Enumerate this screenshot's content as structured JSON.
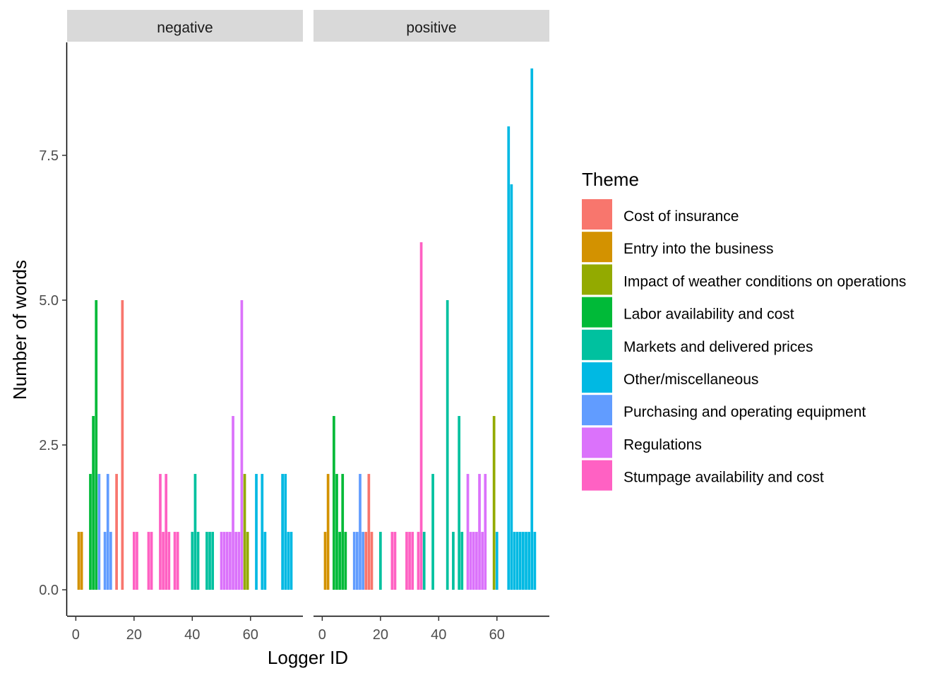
{
  "chart_data": {
    "type": "bar",
    "xlabel": "Logger ID",
    "ylabel": "Number of words",
    "xlim": [
      -3,
      78
    ],
    "ylim": [
      -0.45,
      9.45
    ],
    "x_ticks": [
      0,
      20,
      40,
      60
    ],
    "y_ticks": [
      0,
      2.5,
      5,
      7.5
    ],
    "y_tick_labels": [
      "0.0",
      "2.5",
      "5.0",
      "7.5"
    ],
    "grid": false,
    "legend": {
      "title": "Theme",
      "position": "right",
      "entries": [
        {
          "name": "Cost of insurance",
          "color": "#F8766D"
        },
        {
          "name": "Entry into the business",
          "color": "#D39200"
        },
        {
          "name": "Impact of weather conditions on operations",
          "color": "#93AA00"
        },
        {
          "name": "Labor availability and cost",
          "color": "#00BA38"
        },
        {
          "name": "Markets and delivered prices",
          "color": "#00C19F"
        },
        {
          "name": "Other/miscellaneous",
          "color": "#00B9E3"
        },
        {
          "name": "Purchasing and operating equipment",
          "color": "#619CFF"
        },
        {
          "name": "Regulations",
          "color": "#DB72FB"
        },
        {
          "name": "Stumpage availability and cost",
          "color": "#FF61C3"
        }
      ]
    },
    "panels": [
      {
        "label": "negative",
        "bars": [
          {
            "x": 1,
            "y": 1,
            "theme": 1
          },
          {
            "x": 2,
            "y": 1,
            "theme": 1
          },
          {
            "x": 5,
            "y": 2,
            "theme": 3
          },
          {
            "x": 6,
            "y": 3,
            "theme": 3
          },
          {
            "x": 7,
            "y": 5,
            "theme": 3
          },
          {
            "x": 8,
            "y": 2,
            "theme": 6
          },
          {
            "x": 10,
            "y": 1,
            "theme": 6
          },
          {
            "x": 11,
            "y": 2,
            "theme": 6
          },
          {
            "x": 12,
            "y": 1,
            "theme": 6
          },
          {
            "x": 14,
            "y": 2,
            "theme": 0
          },
          {
            "x": 16,
            "y": 5,
            "theme": 0
          },
          {
            "x": 20,
            "y": 1,
            "theme": 8
          },
          {
            "x": 21,
            "y": 1,
            "theme": 8
          },
          {
            "x": 25,
            "y": 1,
            "theme": 8
          },
          {
            "x": 26,
            "y": 1,
            "theme": 8
          },
          {
            "x": 29,
            "y": 2,
            "theme": 8
          },
          {
            "x": 30,
            "y": 1,
            "theme": 8
          },
          {
            "x": 31,
            "y": 2,
            "theme": 8
          },
          {
            "x": 32,
            "y": 1,
            "theme": 8
          },
          {
            "x": 34,
            "y": 1,
            "theme": 8
          },
          {
            "x": 35,
            "y": 1,
            "theme": 8
          },
          {
            "x": 40,
            "y": 1,
            "theme": 4
          },
          {
            "x": 41,
            "y": 2,
            "theme": 4
          },
          {
            "x": 42,
            "y": 1,
            "theme": 4
          },
          {
            "x": 45,
            "y": 1,
            "theme": 4
          },
          {
            "x": 46,
            "y": 1,
            "theme": 4
          },
          {
            "x": 47,
            "y": 1,
            "theme": 4
          },
          {
            "x": 50,
            "y": 1,
            "theme": 7
          },
          {
            "x": 51,
            "y": 1,
            "theme": 7
          },
          {
            "x": 52,
            "y": 1,
            "theme": 7
          },
          {
            "x": 53,
            "y": 1,
            "theme": 7
          },
          {
            "x": 54,
            "y": 3,
            "theme": 7
          },
          {
            "x": 55,
            "y": 1,
            "theme": 7
          },
          {
            "x": 56,
            "y": 1,
            "theme": 7
          },
          {
            "x": 57,
            "y": 5,
            "theme": 7
          },
          {
            "x": 58,
            "y": 2,
            "theme": 2
          },
          {
            "x": 59,
            "y": 1,
            "theme": 2
          },
          {
            "x": 62,
            "y": 2,
            "theme": 5
          },
          {
            "x": 64,
            "y": 2,
            "theme": 5
          },
          {
            "x": 65,
            "y": 1,
            "theme": 5
          },
          {
            "x": 71,
            "y": 2,
            "theme": 5
          },
          {
            "x": 72,
            "y": 2,
            "theme": 5
          },
          {
            "x": 73,
            "y": 1,
            "theme": 5
          },
          {
            "x": 74,
            "y": 1,
            "theme": 5
          }
        ]
      },
      {
        "label": "positive",
        "bars": [
          {
            "x": 1,
            "y": 1,
            "theme": 1
          },
          {
            "x": 2,
            "y": 2,
            "theme": 1
          },
          {
            "x": 4,
            "y": 3,
            "theme": 3
          },
          {
            "x": 5,
            "y": 2,
            "theme": 3
          },
          {
            "x": 6,
            "y": 1,
            "theme": 3
          },
          {
            "x": 7,
            "y": 2,
            "theme": 3
          },
          {
            "x": 8,
            "y": 1,
            "theme": 3
          },
          {
            "x": 11,
            "y": 1,
            "theme": 6
          },
          {
            "x": 12,
            "y": 1,
            "theme": 6
          },
          {
            "x": 13,
            "y": 2,
            "theme": 6
          },
          {
            "x": 14,
            "y": 1,
            "theme": 6
          },
          {
            "x": 15,
            "y": 1,
            "theme": 0
          },
          {
            "x": 16,
            "y": 2,
            "theme": 0
          },
          {
            "x": 17,
            "y": 1,
            "theme": 0
          },
          {
            "x": 20,
            "y": 1,
            "theme": 4
          },
          {
            "x": 24,
            "y": 1,
            "theme": 8
          },
          {
            "x": 25,
            "y": 1,
            "theme": 8
          },
          {
            "x": 29,
            "y": 1,
            "theme": 8
          },
          {
            "x": 30,
            "y": 1,
            "theme": 8
          },
          {
            "x": 31,
            "y": 1,
            "theme": 8
          },
          {
            "x": 33,
            "y": 1,
            "theme": 8
          },
          {
            "x": 34,
            "y": 6,
            "theme": 8
          },
          {
            "x": 35,
            "y": 1,
            "theme": 4
          },
          {
            "x": 38,
            "y": 2,
            "theme": 4
          },
          {
            "x": 43,
            "y": 5,
            "theme": 4
          },
          {
            "x": 45,
            "y": 1,
            "theme": 4
          },
          {
            "x": 47,
            "y": 3,
            "theme": 4
          },
          {
            "x": 48,
            "y": 1,
            "theme": 4
          },
          {
            "x": 50,
            "y": 2,
            "theme": 7
          },
          {
            "x": 51,
            "y": 1,
            "theme": 7
          },
          {
            "x": 52,
            "y": 1,
            "theme": 7
          },
          {
            "x": 53,
            "y": 1,
            "theme": 7
          },
          {
            "x": 54,
            "y": 2,
            "theme": 7
          },
          {
            "x": 55,
            "y": 1,
            "theme": 7
          },
          {
            "x": 56,
            "y": 2,
            "theme": 7
          },
          {
            "x": 59,
            "y": 3,
            "theme": 2
          },
          {
            "x": 60,
            "y": 1,
            "theme": 5
          },
          {
            "x": 64,
            "y": 8,
            "theme": 5
          },
          {
            "x": 65,
            "y": 7,
            "theme": 5
          },
          {
            "x": 66,
            "y": 1,
            "theme": 5
          },
          {
            "x": 67,
            "y": 1,
            "theme": 5
          },
          {
            "x": 68,
            "y": 1,
            "theme": 5
          },
          {
            "x": 69,
            "y": 1,
            "theme": 5
          },
          {
            "x": 70,
            "y": 1,
            "theme": 5
          },
          {
            "x": 71,
            "y": 1,
            "theme": 5
          },
          {
            "x": 72,
            "y": 9,
            "theme": 5
          },
          {
            "x": 73,
            "y": 1,
            "theme": 5
          }
        ]
      }
    ]
  }
}
